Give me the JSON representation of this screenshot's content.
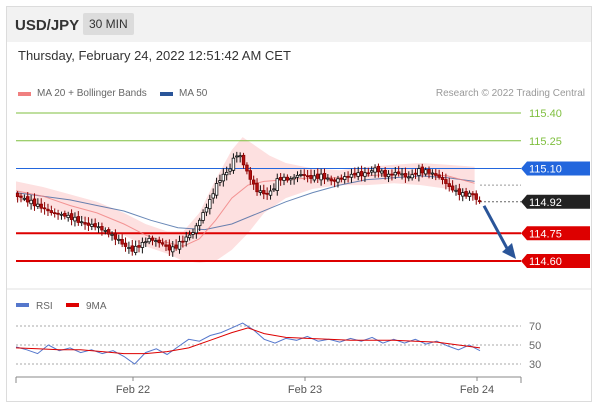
{
  "header": {
    "symbol": "USD/JPY",
    "interval": "30 MIN"
  },
  "timestamp": "Thursday, February 24, 2022 12:51:42 AM CET",
  "credit": "Research © 2022 Trading Central",
  "colors": {
    "ma20": "#f08080",
    "ma50": "#2a5599",
    "support": "#dd0000",
    "resistance_far": "#7fbf3f",
    "resistance_near": "#2266dd",
    "last_price": "#222222",
    "rsi": "#5577cc",
    "rsi_ma": "#dd0000",
    "arrow": "#2a5599"
  },
  "chart_data": [
    {
      "type": "candlestick",
      "legend": [
        "MA 20 + Bollinger Bands",
        "MA 50"
      ],
      "xticks": [
        "Feb 22",
        "Feb 23",
        "Feb 24"
      ],
      "ylim": [
        114.45,
        115.55
      ],
      "levels": [
        {
          "value": 115.4,
          "label": "115.40",
          "kind": "resistance-far"
        },
        {
          "value": 115.25,
          "label": "115.25",
          "kind": "resistance-far"
        },
        {
          "value": 115.1,
          "label": "115.10",
          "kind": "resistance-near"
        },
        {
          "value": 114.92,
          "label": "114.92",
          "kind": "last-price"
        },
        {
          "value": 114.75,
          "label": "114.75",
          "kind": "support"
        },
        {
          "value": 114.6,
          "label": "114.60",
          "kind": "support"
        }
      ],
      "price_path": [
        [
          0,
          114.96
        ],
        [
          6,
          114.92
        ],
        [
          10,
          114.89
        ],
        [
          14,
          114.86
        ],
        [
          18,
          114.85
        ],
        [
          22,
          114.83
        ],
        [
          26,
          114.8
        ],
        [
          30,
          114.79
        ],
        [
          34,
          114.76
        ],
        [
          38,
          114.72
        ],
        [
          42,
          114.67
        ],
        [
          44,
          114.66
        ],
        [
          48,
          114.7
        ],
        [
          50,
          114.72
        ],
        [
          54,
          114.7
        ],
        [
          58,
          114.66
        ],
        [
          60,
          114.68
        ],
        [
          64,
          114.73
        ],
        [
          66,
          114.75
        ],
        [
          68,
          114.8
        ],
        [
          70,
          114.86
        ],
        [
          72,
          114.91
        ],
        [
          74,
          114.98
        ],
        [
          76,
          115.04
        ],
        [
          80,
          115.1
        ],
        [
          82,
          115.18
        ],
        [
          84,
          115.16
        ],
        [
          86,
          115.09
        ],
        [
          88,
          115.03
        ],
        [
          90,
          114.98
        ],
        [
          94,
          114.96
        ],
        [
          96,
          114.99
        ],
        [
          98,
          115.05
        ],
        [
          102,
          115.04
        ],
        [
          106,
          115.07
        ],
        [
          110,
          115.05
        ],
        [
          114,
          115.06
        ],
        [
          118,
          115.03
        ],
        [
          122,
          115.05
        ],
        [
          126,
          115.07
        ],
        [
          130,
          115.07
        ],
        [
          134,
          115.1
        ],
        [
          138,
          115.06
        ],
        [
          142,
          115.08
        ],
        [
          146,
          115.05
        ],
        [
          150,
          115.09
        ],
        [
          154,
          115.08
        ],
        [
          158,
          115.05
        ],
        [
          162,
          114.99
        ],
        [
          166,
          114.96
        ],
        [
          170,
          114.96
        ],
        [
          172,
          114.92
        ]
      ],
      "ma20": [
        [
          0,
          114.98
        ],
        [
          10,
          114.95
        ],
        [
          20,
          114.9
        ],
        [
          30,
          114.86
        ],
        [
          40,
          114.8
        ],
        [
          48,
          114.74
        ],
        [
          56,
          114.7
        ],
        [
          62,
          114.68
        ],
        [
          68,
          114.72
        ],
        [
          74,
          114.82
        ],
        [
          80,
          114.94
        ],
        [
          86,
          115.01
        ],
        [
          92,
          115.03
        ],
        [
          100,
          115.04
        ],
        [
          110,
          115.05
        ],
        [
          120,
          115.05
        ],
        [
          130,
          115.06
        ],
        [
          140,
          115.07
        ],
        [
          150,
          115.07
        ],
        [
          160,
          115.06
        ],
        [
          170,
          115.02
        ]
      ],
      "bb_upper": [
        [
          0,
          115.03
        ],
        [
          10,
          115.0
        ],
        [
          20,
          114.96
        ],
        [
          30,
          114.92
        ],
        [
          40,
          114.86
        ],
        [
          48,
          114.8
        ],
        [
          56,
          114.76
        ],
        [
          62,
          114.76
        ],
        [
          68,
          114.86
        ],
        [
          74,
          115.04
        ],
        [
          80,
          115.2
        ],
        [
          84,
          115.27
        ],
        [
          88,
          115.23
        ],
        [
          94,
          115.17
        ],
        [
          100,
          115.13
        ],
        [
          110,
          115.1
        ],
        [
          120,
          115.09
        ],
        [
          130,
          115.11
        ],
        [
          140,
          115.12
        ],
        [
          150,
          115.13
        ],
        [
          160,
          115.12
        ],
        [
          170,
          115.11
        ]
      ],
      "bb_lower": [
        [
          0,
          114.93
        ],
        [
          10,
          114.9
        ],
        [
          20,
          114.85
        ],
        [
          30,
          114.8
        ],
        [
          40,
          114.74
        ],
        [
          48,
          114.68
        ],
        [
          56,
          114.64
        ],
        [
          62,
          114.6
        ],
        [
          68,
          114.59
        ],
        [
          74,
          114.6
        ],
        [
          80,
          114.66
        ],
        [
          86,
          114.75
        ],
        [
          92,
          114.86
        ],
        [
          100,
          114.94
        ],
        [
          110,
          114.99
        ],
        [
          120,
          115.01
        ],
        [
          130,
          115.01
        ],
        [
          140,
          115.02
        ],
        [
          150,
          115.01
        ],
        [
          160,
          114.99
        ],
        [
          170,
          114.94
        ]
      ],
      "ma50": [
        [
          0,
          114.97
        ],
        [
          10,
          114.95
        ],
        [
          20,
          114.93
        ],
        [
          30,
          114.9
        ],
        [
          40,
          114.87
        ],
        [
          50,
          114.82
        ],
        [
          60,
          114.78
        ],
        [
          70,
          114.77
        ],
        [
          80,
          114.8
        ],
        [
          90,
          114.86
        ],
        [
          100,
          114.92
        ],
        [
          110,
          114.97
        ],
        [
          120,
          115.01
        ],
        [
          130,
          115.04
        ],
        [
          140,
          115.05
        ],
        [
          150,
          115.06
        ],
        [
          160,
          115.05
        ],
        [
          170,
          115.03
        ]
      ],
      "forecast_arrow": {
        "from": 114.92,
        "to": 114.6
      }
    },
    {
      "type": "line",
      "legend": [
        "RSI",
        "9MA"
      ],
      "yticks": [
        70,
        50,
        30
      ],
      "ylim": [
        22,
        80
      ],
      "rsi": [
        [
          0,
          48
        ],
        [
          4,
          45
        ],
        [
          8,
          41
        ],
        [
          12,
          50
        ],
        [
          16,
          44
        ],
        [
          20,
          47
        ],
        [
          24,
          42
        ],
        [
          28,
          45
        ],
        [
          32,
          41
        ],
        [
          36,
          44
        ],
        [
          40,
          38
        ],
        [
          44,
          30
        ],
        [
          48,
          42
        ],
        [
          52,
          46
        ],
        [
          56,
          40
        ],
        [
          60,
          48
        ],
        [
          64,
          56
        ],
        [
          68,
          54
        ],
        [
          72,
          60
        ],
        [
          76,
          63
        ],
        [
          80,
          68
        ],
        [
          84,
          73
        ],
        [
          88,
          66
        ],
        [
          92,
          56
        ],
        [
          96,
          52
        ],
        [
          100,
          57
        ],
        [
          104,
          55
        ],
        [
          108,
          59
        ],
        [
          112,
          54
        ],
        [
          116,
          56
        ],
        [
          120,
          53
        ],
        [
          124,
          57
        ],
        [
          128,
          54
        ],
        [
          132,
          58
        ],
        [
          136,
          52
        ],
        [
          140,
          56
        ],
        [
          144,
          52
        ],
        [
          148,
          56
        ],
        [
          152,
          51
        ],
        [
          156,
          54
        ],
        [
          160,
          49
        ],
        [
          164,
          45
        ],
        [
          168,
          50
        ],
        [
          172,
          44
        ]
      ],
      "ma9": [
        [
          0,
          47
        ],
        [
          8,
          46
        ],
        [
          16,
          45
        ],
        [
          24,
          45
        ],
        [
          32,
          43
        ],
        [
          40,
          41
        ],
        [
          48,
          41
        ],
        [
          56,
          43
        ],
        [
          64,
          47
        ],
        [
          72,
          55
        ],
        [
          80,
          63
        ],
        [
          86,
          68
        ],
        [
          92,
          62
        ],
        [
          100,
          58
        ],
        [
          108,
          57
        ],
        [
          116,
          56
        ],
        [
          124,
          55
        ],
        [
          132,
          55
        ],
        [
          140,
          55
        ],
        [
          148,
          54
        ],
        [
          156,
          53
        ],
        [
          164,
          50
        ],
        [
          172,
          47
        ]
      ]
    }
  ]
}
